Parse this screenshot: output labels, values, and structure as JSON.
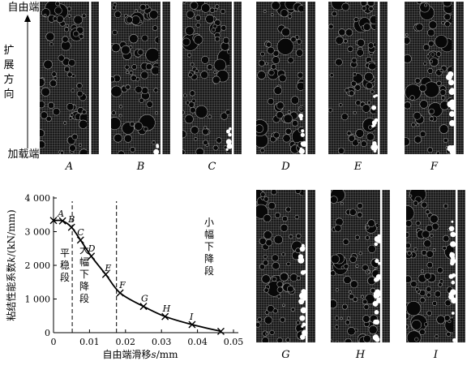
{
  "side_labels": {
    "free_end": "自由端",
    "direction": "扩展方向",
    "loaded_end": "加载端"
  },
  "panels": {
    "row1": [
      "A",
      "B",
      "C",
      "D",
      "E",
      "F"
    ],
    "row2": [
      "G",
      "H",
      "I"
    ]
  },
  "chart_data": {
    "type": "line",
    "xlabel_prefix": "自由端滑移",
    "xlabel_var": "s",
    "xlabel_unit": "/mm",
    "ylabel_prefix": "粘结性能系数",
    "ylabel_var": "k",
    "ylabel_unit": "/(kN/mm)",
    "xlim": [
      0,
      0.05
    ],
    "ylim": [
      0,
      4000
    ],
    "xticks": [
      0,
      0.01,
      0.02,
      0.03,
      0.04,
      0.05
    ],
    "xtick_labels": [
      "0",
      "0.01",
      "0.02",
      "0.03",
      "0.04",
      "0.05"
    ],
    "yticks": [
      0,
      1000,
      2000,
      3000,
      4000
    ],
    "ytick_labels": [
      "0",
      "1 000",
      "2 000",
      "3 000",
      "4 000"
    ],
    "points": [
      {
        "x": 0.0,
        "y": 3330,
        "label": ""
      },
      {
        "x": 0.0025,
        "y": 3320,
        "label": "A"
      },
      {
        "x": 0.005,
        "y": 3130,
        "label": "B"
      },
      {
        "x": 0.0075,
        "y": 2750,
        "label": "C"
      },
      {
        "x": 0.0105,
        "y": 2270,
        "label": "D"
      },
      {
        "x": 0.0145,
        "y": 1730,
        "label": "E"
      },
      {
        "x": 0.0185,
        "y": 1180,
        "label": "F"
      },
      {
        "x": 0.025,
        "y": 780,
        "label": "G"
      },
      {
        "x": 0.031,
        "y": 480,
        "label": "H"
      },
      {
        "x": 0.0385,
        "y": 240,
        "label": "I"
      },
      {
        "x": 0.0465,
        "y": 40,
        "label": ""
      }
    ],
    "dividers_x": [
      0.0052,
      0.0175
    ],
    "stages": [
      {
        "text": "平稳段"
      },
      {
        "text": "大幅下降段"
      },
      {
        "text": "小幅下降段"
      }
    ]
  }
}
